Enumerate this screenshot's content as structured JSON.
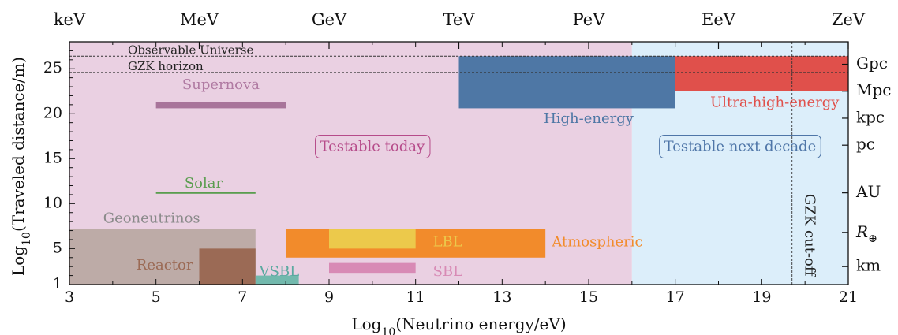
{
  "chart_data": {
    "type": "area",
    "title": "",
    "xlabel_main": "Log",
    "xlabel_sub": "10",
    "xlabel_rest": "(Neutrino energy/eV)",
    "ylabel_main": "Log",
    "ylabel_sub": "10",
    "ylabel_rest": "(Traveled distance/m)",
    "xlim": [
      3,
      21
    ],
    "ylim": [
      1,
      28
    ],
    "x_ticks": [
      "3",
      "5",
      "7",
      "9",
      "11",
      "13",
      "15",
      "17",
      "19",
      "21"
    ],
    "y_ticks": [
      "1",
      "5",
      "10",
      "15",
      "20",
      "25"
    ],
    "top_axis": [
      {
        "label": "keV",
        "x": 3
      },
      {
        "label": "MeV",
        "x": 6
      },
      {
        "label": "GeV",
        "x": 9
      },
      {
        "label": "TeV",
        "x": 12
      },
      {
        "label": "PeV",
        "x": 15
      },
      {
        "label": "EeV",
        "x": 18
      },
      {
        "label": "ZeV",
        "x": 21
      }
    ],
    "right_axis": [
      {
        "label": "Gpc",
        "y": 25.5
      },
      {
        "label": "Mpc",
        "y": 22.5
      },
      {
        "label": "kpc",
        "y": 19.5
      },
      {
        "label": "pc",
        "y": 16.5
      },
      {
        "label": "AU",
        "y": 11.2
      },
      {
        "label": "R",
        "sub": "⊕",
        "y": 6.8
      },
      {
        "label": "km",
        "y": 3
      }
    ],
    "regions": [
      {
        "label": "Testable today",
        "x": [
          3,
          16
        ],
        "color": "#ead0e2",
        "label_color": "#b64b8a",
        "label_x": 10,
        "label_y": 16.3
      },
      {
        "label": "Testable next decade",
        "x": [
          16,
          21
        ],
        "color": "#dceefa",
        "label_color": "#4f76a8",
        "label_x": 18.5,
        "label_y": 16.3
      }
    ],
    "horizon_lines": [
      {
        "label": "Observable Universe",
        "y": 26.4
      },
      {
        "label": "GZK horizon",
        "y": 24.6
      }
    ],
    "gzk_cutoff": {
      "label": "GZK cut-off",
      "x": 19.7
    },
    "boxes": [
      {
        "name": "Geoneutrinos",
        "x": [
          3,
          7.3
        ],
        "y": [
          1,
          7.2
        ],
        "color": "#bdaba7",
        "label_color": "#8a8a8a",
        "label_x": 4.9,
        "label_y": 8.3
      },
      {
        "name": "Reactor",
        "x": [
          6,
          7.3
        ],
        "y": [
          1,
          5
        ],
        "color": "#9b6a55",
        "label_color": "#9b6a55",
        "label_x": 5.2,
        "label_y": 3.1
      },
      {
        "name": "VSBL",
        "x": [
          7.3,
          8.3
        ],
        "y": [
          1,
          2
        ],
        "color": "#72b9ad",
        "label_color": "#5aa9a0",
        "label_x": 7.85,
        "label_y": 2.4
      },
      {
        "name": "Atmospheric",
        "x": [
          8,
          14
        ],
        "y": [
          4,
          7.2
        ],
        "color": "#f28b2b",
        "label_color": "#f28b2b",
        "label_x": 15.2,
        "label_y": 5.7
      },
      {
        "name": "LBL",
        "x": [
          9,
          11
        ],
        "y": [
          5,
          7.2
        ],
        "color": "#ecc94b",
        "label_color": "#ecc94b",
        "label_x": 11.4,
        "label_y": 5.7
      },
      {
        "name": "SBL",
        "x": [
          9,
          11
        ],
        "y": [
          2.3,
          3.4
        ],
        "color": "#d88ab5",
        "label_color": "#d88ab5",
        "label_x": 11.4,
        "label_y": 2.4
      },
      {
        "name": "Solar",
        "x": [
          5,
          7.3
        ],
        "y": [
          11.1,
          11.3
        ],
        "color": "#5a9d4f",
        "label_color": "#5a9d4f",
        "label_x": 6.1,
        "label_y": 12.2
      },
      {
        "name": "Supernova",
        "x": [
          5,
          8
        ],
        "y": [
          20.6,
          21.3
        ],
        "color": "#a8749a",
        "label_color": "#b07aa2",
        "label_x": 6.5,
        "label_y": 23.2
      },
      {
        "name": "High-energy",
        "x": [
          12,
          17
        ],
        "y": [
          20.6,
          26.4
        ],
        "color": "#4e77a5",
        "label_color": "#4e77a5",
        "label_x": 15,
        "label_y": 19.4
      },
      {
        "name": "Ultra-high-energy",
        "x": [
          17,
          21
        ],
        "y": [
          22.5,
          26.4
        ],
        "color": "#e0504b",
        "label_color": "#e0504b",
        "label_x": 19.3,
        "label_y": 21.2
      }
    ]
  }
}
